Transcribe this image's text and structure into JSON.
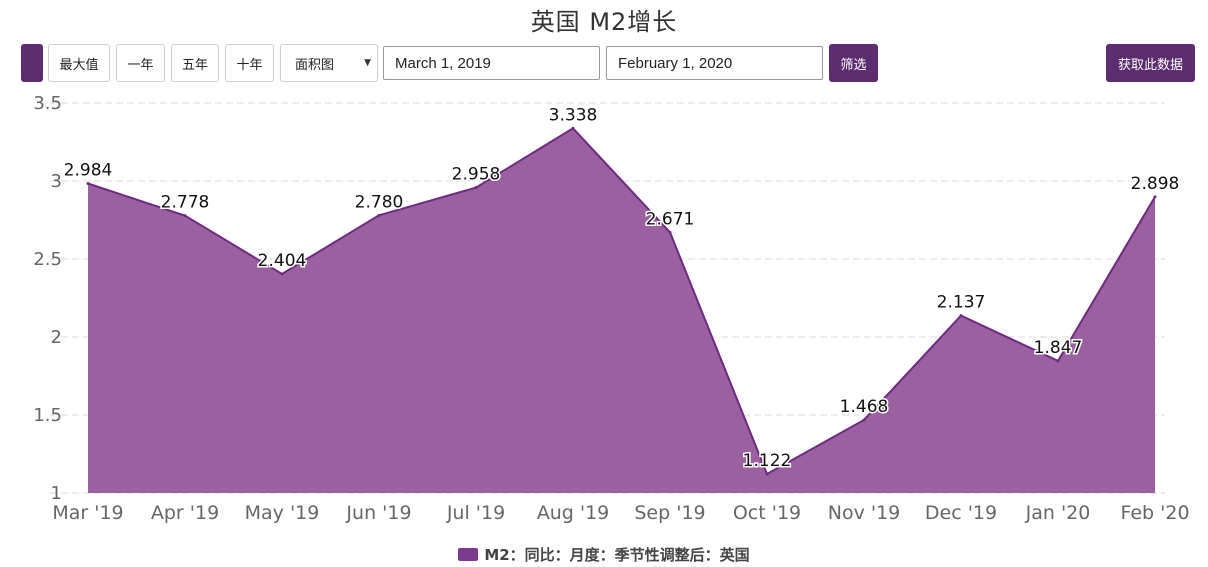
{
  "title": "英国 M2增长",
  "toolbar": {
    "max_label": "最大值",
    "one_year_label": "一年",
    "five_year_label": "五年",
    "ten_year_label": "十年",
    "chart_type_selected": "面积图",
    "start_date": "March 1, 2019",
    "end_date": "February 1, 2020",
    "filter_label": "筛选",
    "get_data_label": "获取此数据"
  },
  "colors": {
    "accent": "#5c2d6e",
    "area_fill": "#9a60a0",
    "area_stroke": "#6e2a80",
    "grid": "#d9d9d9"
  },
  "icons": {
    "dropdown": "triangle-down-icon"
  },
  "chart_data": {
    "type": "area",
    "title": "英国 M2增长",
    "categories": [
      "Mar '19",
      "Apr '19",
      "May '19",
      "Jun '19",
      "Jul '19",
      "Aug '19",
      "Sep '19",
      "Oct '19",
      "Nov '19",
      "Dec '19",
      "Jan '20",
      "Feb '20"
    ],
    "series": [
      {
        "name": "M2：同比：月度：季节性调整后：英国",
        "values": [
          2.984,
          2.778,
          2.404,
          2.78,
          2.958,
          3.338,
          2.671,
          1.122,
          1.468,
          2.137,
          1.847,
          2.898
        ]
      }
    ],
    "data_labels": [
      "2.984",
      "2.778",
      "2.404",
      "2.780",
      "2.958",
      "3.338",
      "2.671",
      "1.122",
      "1.468",
      "2.137",
      "1.847",
      "2.898"
    ],
    "ylim": [
      1,
      3.5
    ],
    "yticks": [
      "1",
      "1.5",
      "2",
      "2.5",
      "3",
      "3.5"
    ],
    "grid": true,
    "legend_position": "bottom-center"
  }
}
